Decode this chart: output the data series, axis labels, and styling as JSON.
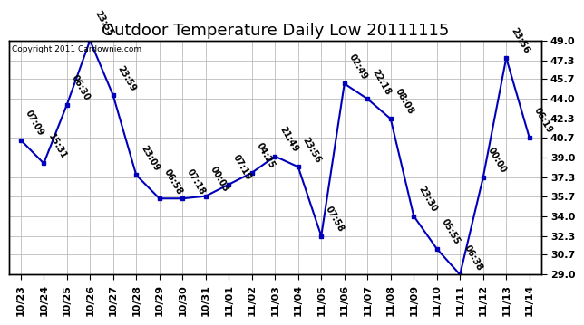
{
  "title": "Outdoor Temperature Daily Low 20111115",
  "copyright": "Copyright 2011 Cardownie.com",
  "x_labels": [
    "10/23",
    "10/24",
    "10/25",
    "10/26",
    "10/27",
    "10/28",
    "10/29",
    "10/30",
    "10/31",
    "11/01",
    "11/02",
    "11/03",
    "11/04",
    "11/05",
    "11/06",
    "11/07",
    "11/08",
    "11/09",
    "11/10",
    "11/11",
    "11/12",
    "11/13",
    "11/14"
  ],
  "y_values": [
    40.5,
    38.5,
    43.5,
    49.0,
    44.3,
    37.5,
    35.5,
    35.5,
    35.7,
    36.7,
    37.7,
    39.1,
    38.2,
    32.3,
    45.3,
    44.0,
    42.3,
    34.0,
    31.2,
    29.0,
    37.3,
    47.5,
    40.7
  ],
  "point_labels": [
    "07:09",
    "15:31",
    "06:30",
    "23:55",
    "23:59",
    "23:09",
    "06:58",
    "07:18",
    "00:03",
    "07:19",
    "04:25",
    "21:49",
    "23:56",
    "07:58",
    "02:49",
    "22:18",
    "08:08",
    "23:30",
    "05:55",
    "06:38",
    "00:00",
    "23:56",
    "06:19"
  ],
  "ylim": [
    29.0,
    49.0
  ],
  "yticks": [
    29.0,
    30.7,
    32.3,
    34.0,
    35.7,
    37.3,
    39.0,
    40.7,
    42.3,
    44.0,
    45.7,
    47.3,
    49.0
  ],
  "line_color": "#0000bb",
  "marker_color": "#0000bb",
  "bg_color": "#ffffff",
  "grid_color": "#bbbbbb",
  "title_fontsize": 13,
  "label_fontsize": 7,
  "tick_fontsize": 8,
  "copyright_fontsize": 6.5
}
